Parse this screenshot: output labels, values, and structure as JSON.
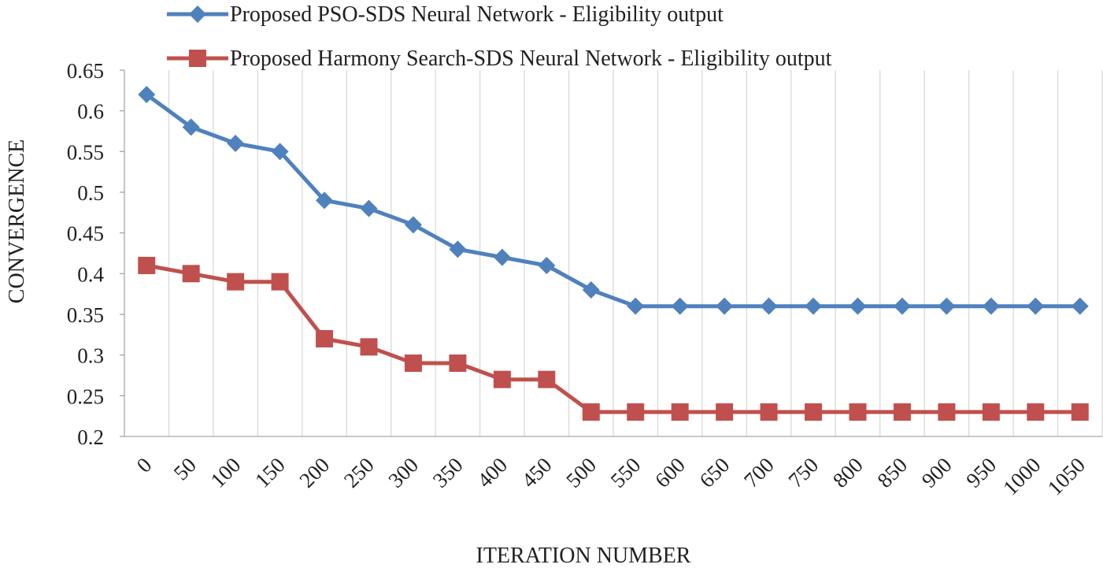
{
  "chart_data": {
    "type": "line",
    "title": "",
    "xlabel": "ITERATION NUMBER",
    "ylabel": "CONVERGENCE",
    "categories": [
      "0",
      "50",
      "100",
      "150",
      "200",
      "250",
      "300",
      "350",
      "400",
      "450",
      "500",
      "550",
      "600",
      "650",
      "700",
      "750",
      "800",
      "850",
      "900",
      "950",
      "1000",
      "1050"
    ],
    "ylim": [
      0.2,
      0.65
    ],
    "yticks": [
      "0.2",
      "0.25",
      "0.3",
      "0.35",
      "0.4",
      "0.45",
      "0.5",
      "0.55",
      "0.6",
      "0.65"
    ],
    "grid": "vertical",
    "legend_position": "top",
    "series": [
      {
        "name": "Proposed PSO-SDS Neural Network - Eligibility output",
        "color": "#4f81bd",
        "marker": "diamond",
        "values": [
          0.62,
          0.58,
          0.56,
          0.55,
          0.49,
          0.48,
          0.46,
          0.43,
          0.42,
          0.41,
          0.38,
          0.36,
          0.36,
          0.36,
          0.36,
          0.36,
          0.36,
          0.36,
          0.36,
          0.36,
          0.36,
          0.36
        ]
      },
      {
        "name": "Proposed Harmony Search-SDS Neural Network - Eligibility output",
        "color": "#c0504d",
        "marker": "square",
        "values": [
          0.41,
          0.4,
          0.39,
          0.39,
          0.32,
          0.31,
          0.29,
          0.29,
          0.27,
          0.27,
          0.23,
          0.23,
          0.23,
          0.23,
          0.23,
          0.23,
          0.23,
          0.23,
          0.23,
          0.23,
          0.23,
          0.23
        ]
      }
    ]
  }
}
